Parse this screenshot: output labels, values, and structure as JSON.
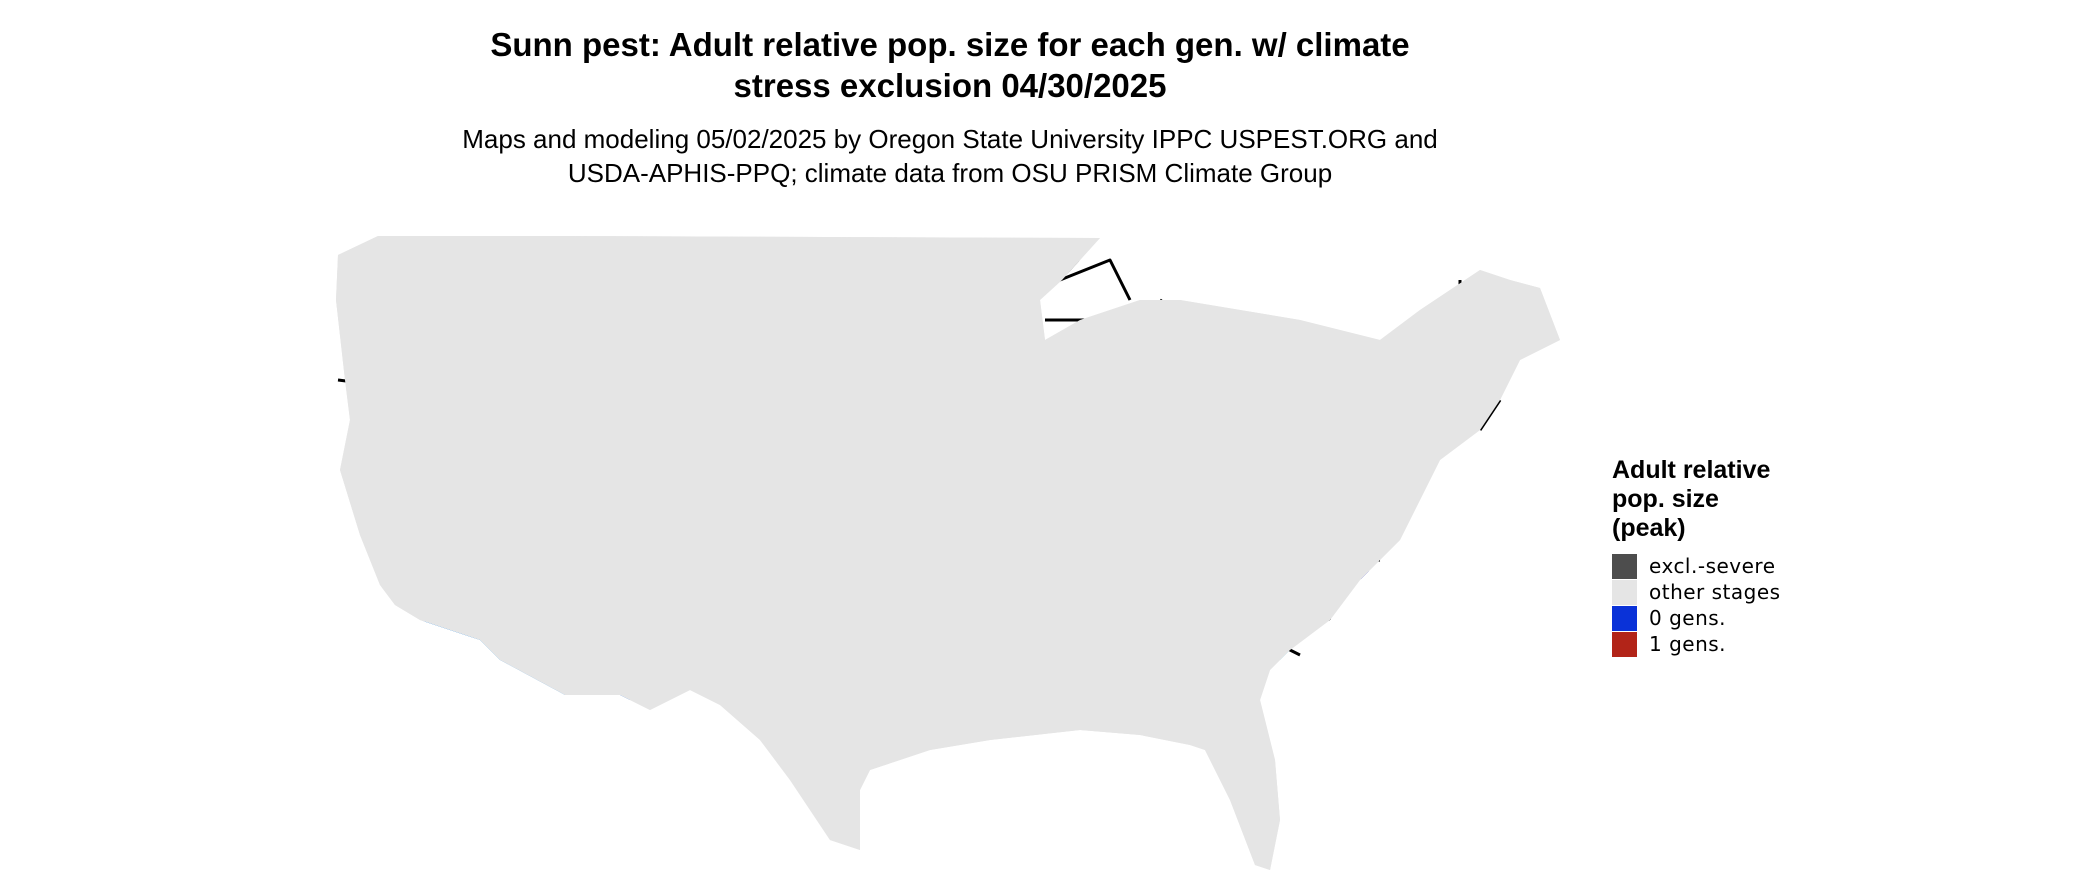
{
  "title": {
    "line1": "Sunn pest: Adult relative pop. size for each gen. w/ climate",
    "line2": "stress exclusion 04/30/2025"
  },
  "subtitle": {
    "line1": "Maps and modeling 05/02/2025 by Oregon State University IPPC USPEST.ORG and",
    "line2": "USDA-APHIS-PPQ; climate data from OSU PRISM Climate Group"
  },
  "legend": {
    "title_lines": [
      "Adult relative",
      "pop. size",
      "(peak)"
    ],
    "items": [
      {
        "label": "excl.-severe",
        "color": "#4d4d4d"
      },
      {
        "label": "other stages",
        "color": "#e5e5e5"
      },
      {
        "label": "0 gens.",
        "color": "#0a32d8"
      },
      {
        "label": "1 gens.",
        "color": "#b22418"
      }
    ]
  },
  "colors": {
    "land": "#e5e5e5",
    "excluded": "#4d4d4d",
    "light_blue": "#00bfff",
    "mid_blue": "#0a64ee",
    "dark_blue": "#0a14c8",
    "boundary": "#000000"
  }
}
